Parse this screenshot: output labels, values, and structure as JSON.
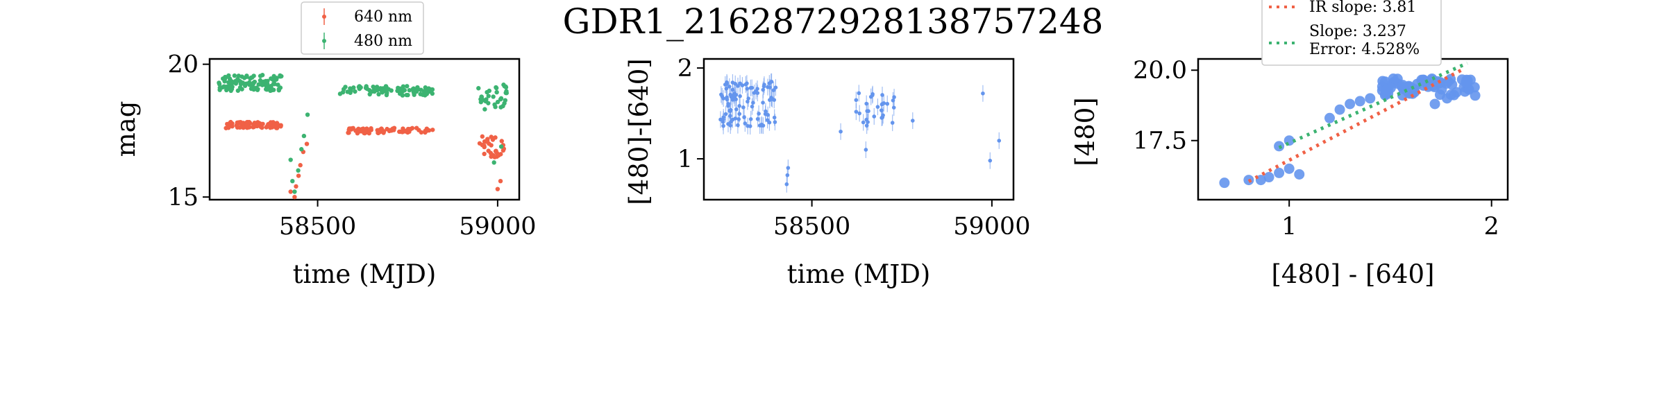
{
  "title": "GDR1_2162872928138757248",
  "colors": {
    "red": "#f06146",
    "green": "#3cb371",
    "blue": "#6495ed",
    "err": "#c8d6ee"
  },
  "chart_data": [
    {
      "type": "scatter",
      "xlabel": "time (MJD)",
      "ylabel": "mag",
      "xlim": [
        58200,
        59060
      ],
      "ylim": [
        20.2,
        14.9
      ],
      "y_inverted": true,
      "xticks": [
        "58500",
        "59000"
      ],
      "yticks": [
        "15",
        "20"
      ],
      "xtick_values": [
        58500,
        59000
      ],
      "ytick_values": [
        15,
        20
      ],
      "legend": {
        "placement": "top",
        "entries": [
          "640 nm",
          "480 nm"
        ]
      },
      "series": [
        {
          "name": "640 nm",
          "color": "red",
          "segments": [
            {
              "x0": 58245,
              "x1": 58400,
              "y": 17.7,
              "spread": 0.25,
              "n": 80
            },
            {
              "x0": 58580,
              "x1": 58820,
              "y": 17.5,
              "spread": 0.2,
              "n": 75
            },
            {
              "x0": 58950,
              "x1": 59025,
              "y": 16.9,
              "spread": 0.8,
              "n": 30
            }
          ],
          "points": [
            {
              "x": 58425,
              "y": 15.2
            },
            {
              "x": 58430,
              "y": 14.9
            },
            {
              "x": 58436,
              "y": 15.0
            },
            {
              "x": 58440,
              "y": 15.4
            },
            {
              "x": 58447,
              "y": 15.8
            },
            {
              "x": 58452,
              "y": 16.2
            },
            {
              "x": 58460,
              "y": 16.7
            },
            {
              "x": 58470,
              "y": 17.0
            },
            {
              "x": 59000,
              "y": 15.3
            },
            {
              "x": 59008,
              "y": 15.6
            }
          ]
        },
        {
          "name": "480 nm",
          "color": "green",
          "segments": [
            {
              "x0": 58225,
              "x1": 58400,
              "y": 19.3,
              "spread": 0.6,
              "n": 110
            },
            {
              "x0": 58560,
              "x1": 58820,
              "y": 19.0,
              "spread": 0.35,
              "n": 90
            },
            {
              "x0": 58945,
              "x1": 59025,
              "y": 18.8,
              "spread": 1.0,
              "n": 35
            }
          ],
          "points": [
            {
              "x": 58425,
              "y": 16.4
            },
            {
              "x": 58430,
              "y": 15.6
            },
            {
              "x": 58436,
              "y": 15.2
            },
            {
              "x": 58446,
              "y": 16.0
            },
            {
              "x": 58455,
              "y": 16.8
            },
            {
              "x": 58462,
              "y": 17.3
            },
            {
              "x": 58472,
              "y": 18.1
            },
            {
              "x": 58990,
              "y": 16.3
            },
            {
              "x": 59010,
              "y": 16.9
            }
          ]
        }
      ]
    },
    {
      "type": "scatter",
      "xlabel": "time (MJD)",
      "ylabel": "[480]-[640]",
      "xlim": [
        58200,
        59060
      ],
      "ylim": [
        2.1,
        0.55
      ],
      "y_inverted": true,
      "xticks": [
        "58500",
        "59000"
      ],
      "yticks": [
        "1",
        "2"
      ],
      "xtick_values": [
        58500,
        59000
      ],
      "ytick_values": [
        1,
        2
      ],
      "series": [
        {
          "color": "blue",
          "segments": [
            {
              "x0": 58245,
              "x1": 58400,
              "y": 1.6,
              "spread": 0.5,
              "n": 95
            },
            {
              "x0": 58620,
              "x1": 58735,
              "y": 1.55,
              "spread": 0.4,
              "n": 28
            }
          ],
          "points": [
            {
              "x": 58430,
              "y": 0.72
            },
            {
              "x": 58432,
              "y": 0.82
            },
            {
              "x": 58434,
              "y": 0.9
            },
            {
              "x": 58580,
              "y": 1.3
            },
            {
              "x": 58650,
              "y": 1.1
            },
            {
              "x": 58780,
              "y": 1.42
            },
            {
              "x": 58975,
              "y": 1.72
            },
            {
              "x": 58995,
              "y": 0.98
            },
            {
              "x": 59020,
              "y": 1.2
            }
          ]
        }
      ]
    },
    {
      "type": "scatter",
      "xlabel": "[480] - [640]",
      "ylabel": "[480]",
      "xlim": [
        0.55,
        2.08
      ],
      "ylim": [
        20.4,
        15.4
      ],
      "y_inverted": true,
      "xticks": [
        "1",
        "2"
      ],
      "yticks": [
        "17.5",
        "20.0"
      ],
      "xtick_values": [
        1,
        2
      ],
      "ytick_values": [
        17.5,
        20.0
      ],
      "legend": {
        "placement": "top-right",
        "entries": [
          "IR slope: 3.81",
          "Slope: 3.237",
          "Error: 4.528%"
        ]
      },
      "series": [
        {
          "color": "blue",
          "segments": [
            {
              "x0": 1.45,
              "x1": 1.92,
              "y": 19.4,
              "spread": 0.6,
              "n": 70
            }
          ],
          "points": [
            {
              "x": 0.68,
              "y": 16.0
            },
            {
              "x": 0.8,
              "y": 16.1
            },
            {
              "x": 0.86,
              "y": 16.1
            },
            {
              "x": 0.9,
              "y": 16.2
            },
            {
              "x": 0.95,
              "y": 16.35
            },
            {
              "x": 1.0,
              "y": 16.5
            },
            {
              "x": 1.05,
              "y": 16.3
            },
            {
              "x": 0.95,
              "y": 17.3
            },
            {
              "x": 1.0,
              "y": 17.5
            },
            {
              "x": 1.2,
              "y": 18.3
            },
            {
              "x": 1.25,
              "y": 18.6
            },
            {
              "x": 1.3,
              "y": 18.8
            },
            {
              "x": 1.35,
              "y": 18.9
            },
            {
              "x": 1.4,
              "y": 19.0
            },
            {
              "x": 1.72,
              "y": 18.8
            },
            {
              "x": 1.78,
              "y": 19.0
            }
          ]
        }
      ],
      "fit_lines": [
        {
          "label": "IR slope: 3.81",
          "color": "red",
          "from": [
            0.8,
            16.05
          ],
          "to": [
            1.85,
            20.0
          ]
        },
        {
          "label": "Slope: 3.237",
          "color": "green",
          "from": [
            0.95,
            17.25
          ],
          "to": [
            1.88,
            20.25
          ]
        }
      ]
    }
  ]
}
